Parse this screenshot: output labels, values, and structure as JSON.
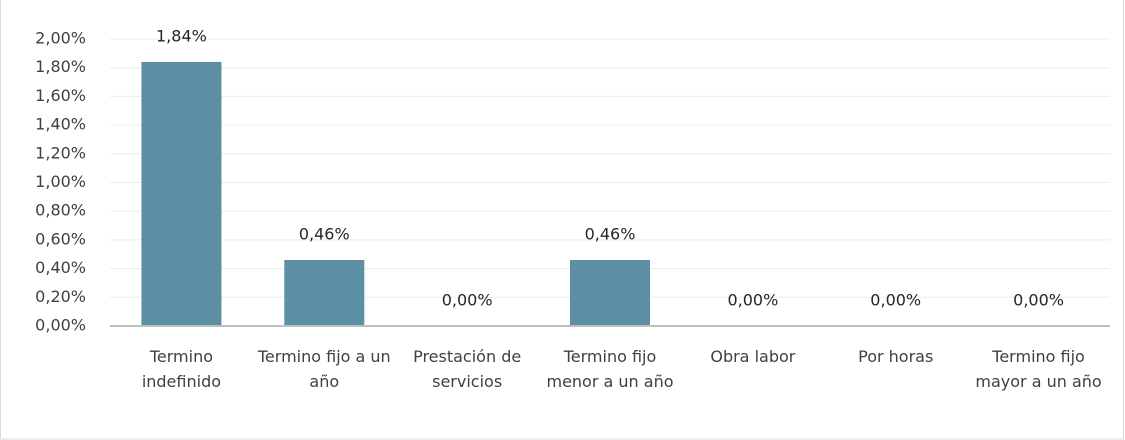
{
  "chart_data": {
    "type": "bar",
    "categories": [
      "Termino indefinido",
      "Termino fijo a un año",
      "Prestación de servicios",
      "Termino fijo menor a un año",
      "Obra labor",
      "Por horas",
      "Termino fijo mayor a un año"
    ],
    "values": [
      1.84,
      0.46,
      0,
      0.46,
      0,
      0,
      0
    ],
    "value_labels": [
      "1,84%",
      "0,46%",
      "0,00%",
      "0,46%",
      "0,00%",
      "0,00%",
      "0,00%"
    ],
    "color": "#5b8fa3",
    "ylim": [
      0,
      2
    ],
    "yticks": [
      {
        "value": 0,
        "label": "0,00%"
      },
      {
        "value": 0.2,
        "label": "0,20%"
      },
      {
        "value": 0.4,
        "label": "0,40%"
      },
      {
        "value": 0.6,
        "label": "0,60%"
      },
      {
        "value": 0.8,
        "label": "0,80%"
      },
      {
        "value": 1,
        "label": "1,00%"
      },
      {
        "value": 1.2,
        "label": "1,20%"
      },
      {
        "value": 1.4,
        "label": "1,40%"
      },
      {
        "value": 1.6,
        "label": "1,60%"
      },
      {
        "value": 1.8,
        "label": "1,80%"
      },
      {
        "value": 2,
        "label": "2,00%"
      }
    ],
    "grid": true
  }
}
